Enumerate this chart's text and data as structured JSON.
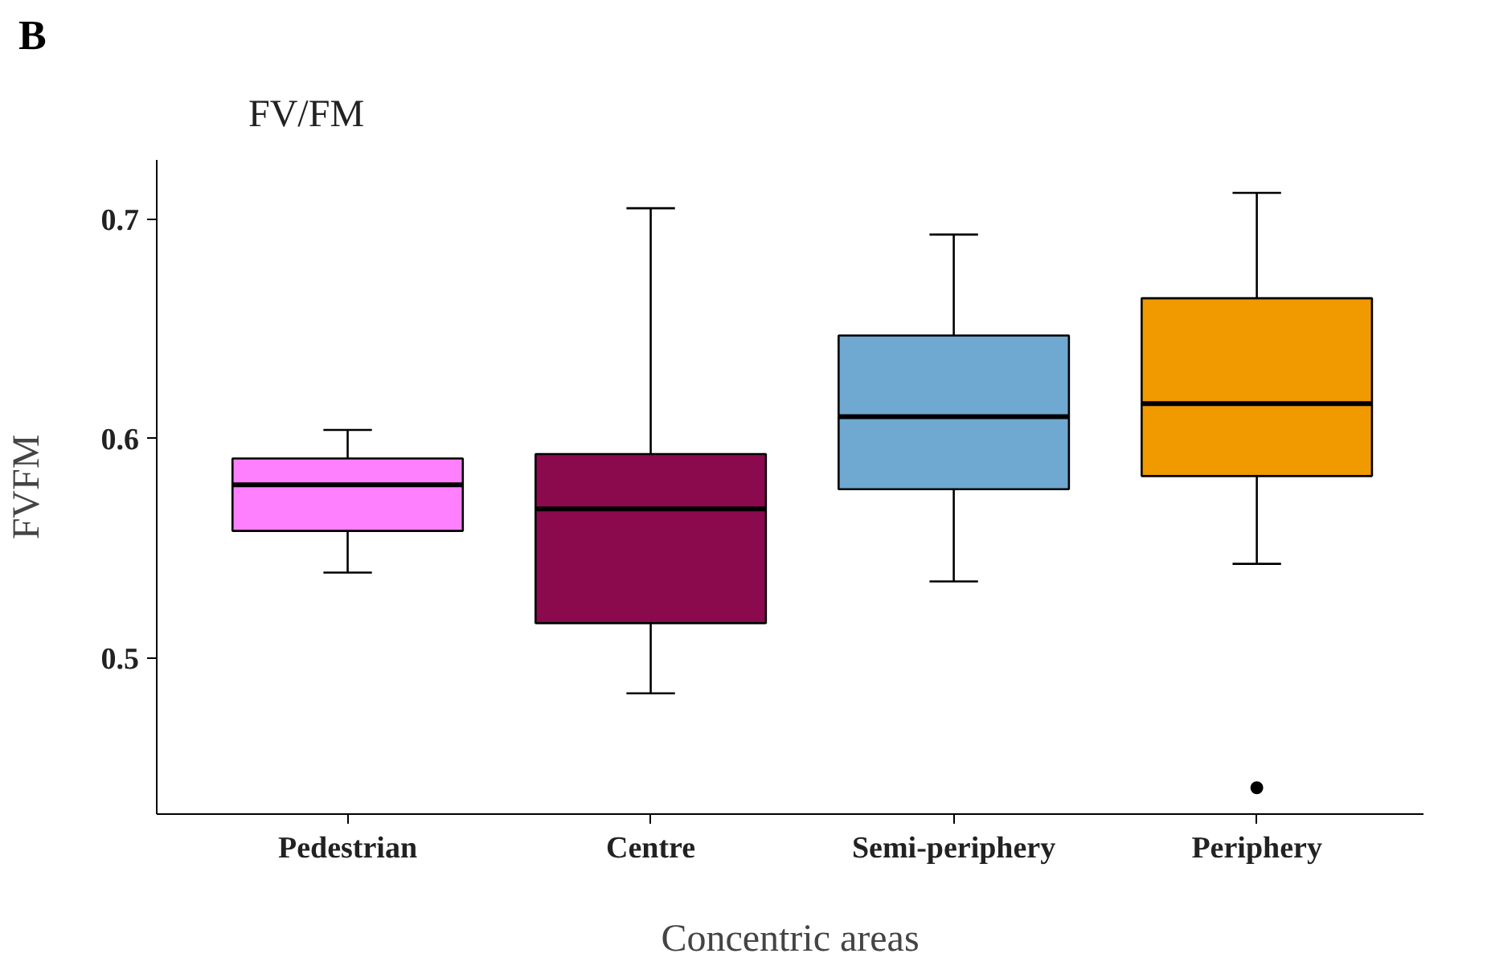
{
  "chart_data": {
    "type": "box",
    "title": "FV/FM",
    "xlabel": "Concentric areas",
    "ylabel": "FVFM",
    "annotations": [
      "B"
    ],
    "categories": [
      "Pedestrian",
      "Centre",
      "Semi-periphery",
      "Periphery"
    ],
    "colors": [
      "#ff80ff",
      "#8b0a4e",
      "#6fa8d0",
      "#f09a00"
    ],
    "boxes": [
      {
        "low": 0.539,
        "q1": 0.558,
        "median": 0.579,
        "q3": 0.591,
        "high": 0.604
      },
      {
        "low": 0.484,
        "q1": 0.516,
        "median": 0.568,
        "q3": 0.593,
        "high": 0.705
      },
      {
        "low": 0.535,
        "q1": 0.577,
        "median": 0.61,
        "q3": 0.647,
        "high": 0.693
      },
      {
        "low": 0.543,
        "q1": 0.583,
        "median": 0.616,
        "q3": 0.664,
        "high": 0.712,
        "outliers": [
          0.441
        ]
      }
    ],
    "ylim": [
      0.429,
      0.727
    ],
    "yticks": [
      0.5,
      0.6,
      0.7
    ],
    "grid": false
  }
}
